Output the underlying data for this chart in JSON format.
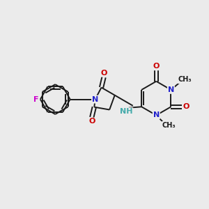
{
  "background_color": "#EBEBEB",
  "bond_color": "#1a1a1a",
  "atom_colors": {
    "N": "#2222CC",
    "O": "#CC0000",
    "F": "#CC00CC",
    "NH": "#44AAAA",
    "C": "#1a1a1a"
  },
  "lw": 1.4,
  "fig_size": [
    3.0,
    3.0
  ],
  "dpi": 100
}
